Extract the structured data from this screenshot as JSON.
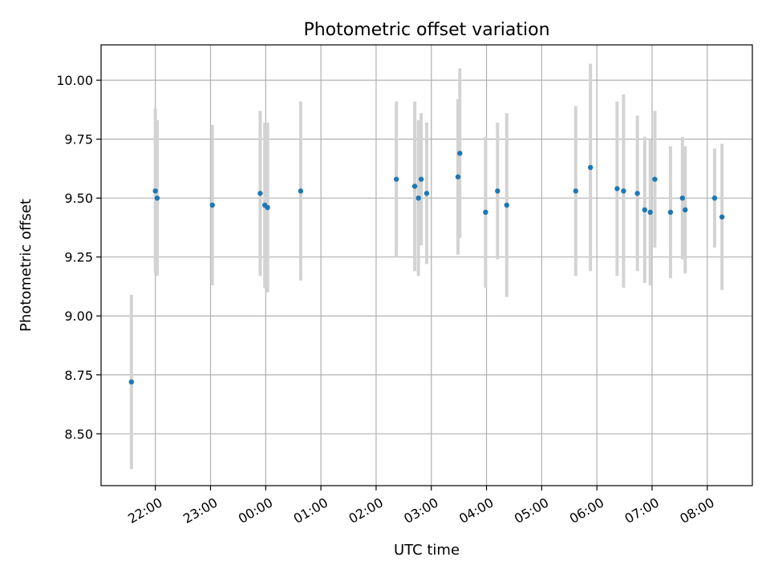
{
  "chart_data": {
    "type": "scatter",
    "title": "Photometric offset variation",
    "xlabel": "UTC time",
    "ylabel": "Photometric offset",
    "x_ticks": [
      "22:00",
      "23:00",
      "00:00",
      "01:00",
      "02:00",
      "03:00",
      "04:00",
      "05:00",
      "06:00",
      "07:00",
      "08:00"
    ],
    "y_ticks": [
      "8.50",
      "8.75",
      "9.00",
      "9.25",
      "9.50",
      "9.75",
      "10.00"
    ],
    "xlim": [
      "21:01",
      "08:49"
    ],
    "ylim": [
      8.28,
      10.15
    ],
    "grid": true,
    "points": [
      {
        "x": "21:34",
        "y": 8.72,
        "err": 0.37
      },
      {
        "x": "22:00",
        "y": 9.53,
        "err": 0.35
      },
      {
        "x": "22:02",
        "y": 9.5,
        "err": 0.33
      },
      {
        "x": "23:02",
        "y": 9.47,
        "err": 0.34
      },
      {
        "x": "23:54",
        "y": 9.52,
        "err": 0.35
      },
      {
        "x": "23:59",
        "y": 9.47,
        "err": 0.35
      },
      {
        "x": "00:02",
        "y": 9.46,
        "err": 0.36
      },
      {
        "x": "00:38",
        "y": 9.53,
        "err": 0.38
      },
      {
        "x": "02:22",
        "y": 9.58,
        "err": 0.33
      },
      {
        "x": "02:42",
        "y": 9.55,
        "err": 0.36
      },
      {
        "x": "02:46",
        "y": 9.5,
        "err": 0.33
      },
      {
        "x": "02:49",
        "y": 9.58,
        "err": 0.28
      },
      {
        "x": "02:55",
        "y": 9.52,
        "err": 0.3
      },
      {
        "x": "03:29",
        "y": 9.59,
        "err": 0.33
      },
      {
        "x": "03:31",
        "y": 9.69,
        "err": 0.36
      },
      {
        "x": "03:59",
        "y": 9.44,
        "err": 0.32
      },
      {
        "x": "04:12",
        "y": 9.53,
        "err": 0.29
      },
      {
        "x": "04:22",
        "y": 9.47,
        "err": 0.39
      },
      {
        "x": "05:37",
        "y": 9.53,
        "err": 0.36
      },
      {
        "x": "05:53",
        "y": 9.63,
        "err": 0.44
      },
      {
        "x": "06:22",
        "y": 9.54,
        "err": 0.37
      },
      {
        "x": "06:29",
        "y": 9.53,
        "err": 0.41
      },
      {
        "x": "06:44",
        "y": 9.52,
        "err": 0.33
      },
      {
        "x": "06:52",
        "y": 9.45,
        "err": 0.31
      },
      {
        "x": "06:58",
        "y": 9.44,
        "err": 0.31
      },
      {
        "x": "07:03",
        "y": 9.58,
        "err": 0.29
      },
      {
        "x": "07:20",
        "y": 9.44,
        "err": 0.28
      },
      {
        "x": "07:33",
        "y": 9.5,
        "err": 0.26
      },
      {
        "x": "07:36",
        "y": 9.45,
        "err": 0.27
      },
      {
        "x": "08:08",
        "y": 9.5,
        "err": 0.21
      },
      {
        "x": "08:16",
        "y": 9.42,
        "err": 0.31
      }
    ],
    "colors": {
      "point": "#1f77b4",
      "errorbar": "#d3d3d3",
      "grid": "#b0b0b0"
    }
  }
}
